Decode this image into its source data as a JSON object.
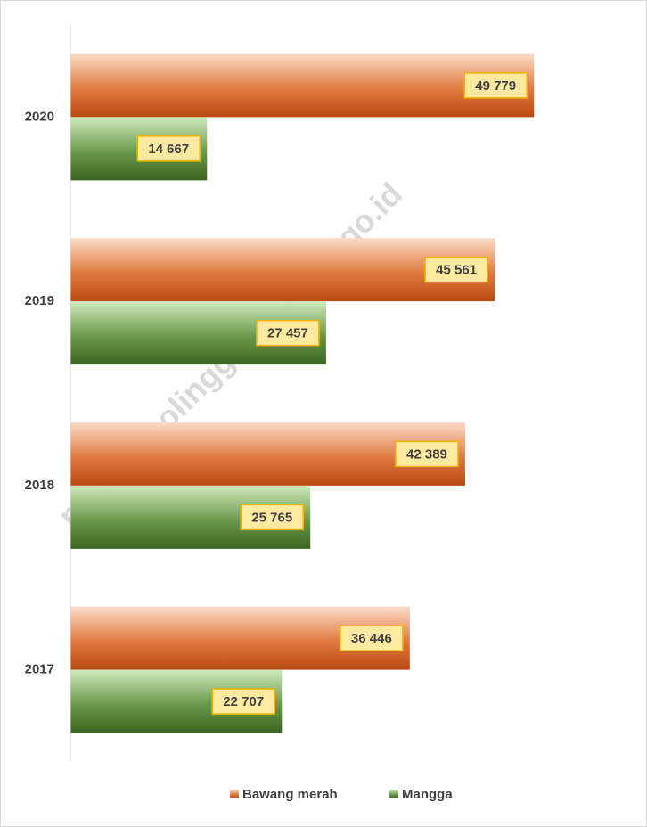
{
  "chart_data": {
    "type": "bar",
    "orientation": "horizontal",
    "categories": [
      "2017",
      "2018",
      "2019",
      "2020"
    ],
    "series": [
      {
        "name": "Bawang merah",
        "color": "#c5501a",
        "values": [
          36446,
          42389,
          45561,
          49779
        ],
        "value_labels": [
          "36 446",
          "42 389",
          "45 561",
          "49 779"
        ]
      },
      {
        "name": "Mangga",
        "color": "#3e6b25",
        "values": [
          22707,
          25765,
          27457,
          14667
        ],
        "value_labels": [
          "22 707",
          "25 765",
          "27 457",
          "14 667"
        ]
      }
    ],
    "xlim": [
      0,
      60000
    ],
    "legend": "bottom",
    "watermark": "ps://probolinggokota.bps.go.id"
  }
}
